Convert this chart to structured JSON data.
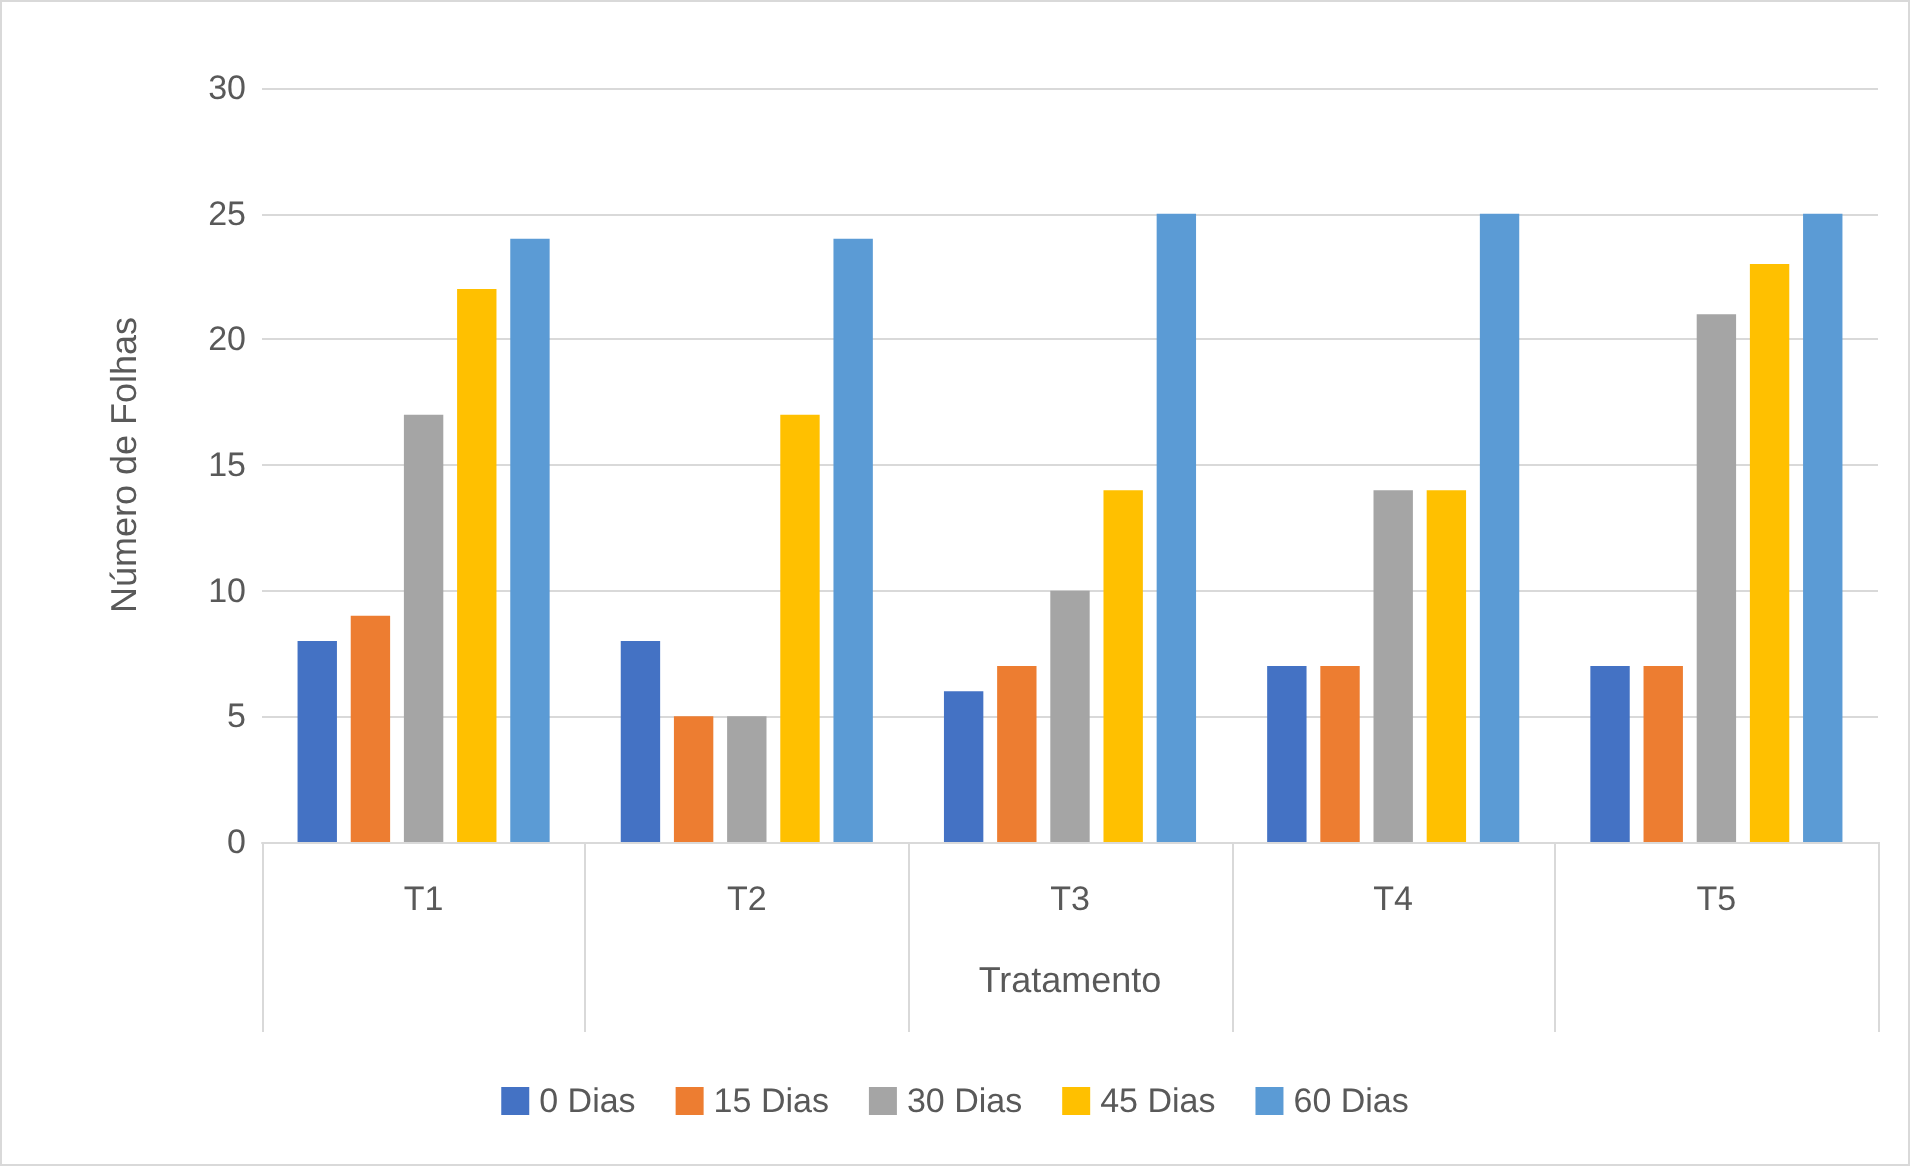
{
  "chart_data": {
    "type": "bar",
    "xlabel": "Tratamento",
    "ylabel": "Número de Folhas",
    "categories": [
      "T1",
      "T2",
      "T3",
      "T4",
      "T5"
    ],
    "series": [
      {
        "name": "0 Dias",
        "color": "#4472c4",
        "values": [
          8,
          8,
          6,
          7,
          7
        ]
      },
      {
        "name": "15 Dias",
        "color": "#ed7d31",
        "values": [
          9,
          5,
          7,
          7,
          7
        ]
      },
      {
        "name": "30 Dias",
        "color": "#a5a5a5",
        "values": [
          17,
          5,
          10,
          14,
          21
        ]
      },
      {
        "name": "45 Dias",
        "color": "#ffc000",
        "values": [
          22,
          17,
          14,
          14,
          23
        ]
      },
      {
        "name": "60 Dias",
        "color": "#5b9bd5",
        "values": [
          24,
          24,
          25,
          25,
          25
        ]
      }
    ],
    "ylim": [
      0,
      30
    ],
    "yticks": [
      0,
      5,
      10,
      15,
      20,
      25,
      30
    ],
    "grid": "y",
    "legend": "bottom"
  }
}
